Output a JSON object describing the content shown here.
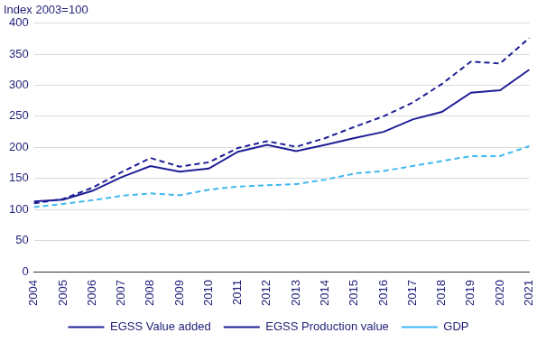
{
  "chart_data": {
    "type": "line",
    "ylabel": "Index 2003=100",
    "categories": [
      "2004",
      "2005",
      "2006",
      "2007",
      "2008",
      "2009",
      "2010",
      "2011",
      "2012",
      "2013",
      "2014",
      "2015",
      "2016",
      "2017",
      "2018",
      "2019",
      "2020",
      "2021"
    ],
    "series": [
      {
        "name": "EGSS Value added",
        "color": "#1e1e96",
        "line_style": "solid",
        "values": [
          113,
          116,
          130,
          152,
          170,
          161,
          166,
          193,
          204,
          194,
          204,
          215,
          225,
          245,
          257,
          288,
          292,
          325
        ]
      },
      {
        "name": "EGSS Production value",
        "color": "#1e1e96",
        "line_style": "dashed",
        "values": [
          110,
          117,
          135,
          160,
          183,
          169,
          176,
          199,
          210,
          201,
          215,
          233,
          250,
          272,
          302,
          338,
          335,
          376
        ]
      },
      {
        "name": "GDP",
        "color": "#3fb8f0",
        "line_style": "dashed",
        "values": [
          104,
          109,
          115,
          122,
          126,
          123,
          132,
          137,
          139,
          141,
          148,
          158,
          162,
          170,
          178,
          186,
          186,
          202
        ]
      }
    ],
    "ylim": [
      0,
      400
    ],
    "yticks": [
      0,
      50,
      100,
      150,
      200,
      250,
      300,
      350,
      400
    ],
    "grid": true,
    "legend": "bottom"
  }
}
